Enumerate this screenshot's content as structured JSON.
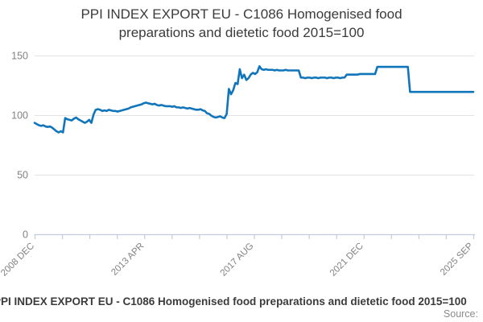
{
  "title_lines": [
    "PPI INDEX EXPORT EU - C1086 Homogenised food",
    "preparations and dietetic food 2015=100"
  ],
  "footer": {
    "title": "PPI INDEX EXPORT EU - C1086 Homogenised food preparations and dietetic food 2015=100",
    "source_label": "Source:"
  },
  "colors": {
    "line": "#1175bb",
    "axis": "#c2cbe0",
    "grid": "#e2e2e2",
    "tick_text": "#828282"
  },
  "chart_data": {
    "type": "line",
    "title": "PPI INDEX EXPORT EU - C1086 Homogenised food preparations and dietetic food 2015=100",
    "frequency": "monthly",
    "x_start": "2008-12",
    "x_end": "2025-09",
    "x_tick_labels": [
      "2008 DEC",
      "2013 APR",
      "2017 AUG",
      "2021 DEC",
      "2025 SEP"
    ],
    "x_tick_count": 17,
    "labeled_tick_indices": [
      0,
      4,
      8,
      12,
      16
    ],
    "y_ticks": [
      0,
      50,
      100,
      150
    ],
    "ylim": [
      0,
      150
    ],
    "grid": true,
    "legend": "none",
    "values": [
      93.5,
      92.5,
      91.5,
      91,
      91.5,
      90.5,
      90,
      90.5,
      89.5,
      88,
      86.5,
      85.5,
      86.5,
      85.5,
      97.5,
      96.5,
      96,
      95.5,
      97,
      98,
      96.5,
      95.5,
      94.5,
      93.5,
      94.5,
      96,
      93.5,
      100.5,
      104.5,
      105,
      104.5,
      103.5,
      104,
      103.5,
      104.5,
      104,
      103.5,
      103.5,
      103,
      103.5,
      104,
      104.5,
      105,
      105.5,
      106.5,
      107,
      107.5,
      108,
      108.5,
      109,
      110,
      110.5,
      110,
      109.5,
      109,
      109.5,
      108.5,
      108,
      108.5,
      108,
      107.5,
      107.5,
      107.5,
      107,
      107.5,
      106.5,
      106.5,
      106,
      106.5,
      106,
      105.5,
      106,
      105.5,
      105,
      104.5,
      104.5,
      105,
      104,
      103.5,
      101.5,
      101,
      99.5,
      98.5,
      98,
      98.5,
      99,
      98,
      97.5,
      101,
      122,
      117.5,
      121,
      127,
      126,
      138.5,
      131,
      134,
      129.5,
      131,
      134,
      135.5,
      134.5,
      136,
      141,
      138.5,
      138,
      138.5,
      138,
      138,
      138,
      137.5,
      138,
      137.5,
      137.5,
      137.5,
      138,
      137.5,
      137.5,
      137.5,
      137.5,
      137.5,
      137.5,
      131.5,
      131.5,
      131,
      131.5,
      131.5,
      131,
      131.5,
      131.5,
      131,
      131.5,
      131.5,
      131.5,
      131,
      131.5,
      131.5,
      131,
      131.5,
      131.5,
      131,
      131.5,
      131.5,
      134,
      134,
      134,
      134,
      134,
      134,
      134.5,
      134.5,
      134.5,
      134.5,
      134.5,
      134.5,
      134.5,
      134.5,
      140.5,
      140.5,
      140.5,
      140.5,
      140.5,
      140.5,
      140.5,
      140.5,
      140.5,
      140.5,
      140.5,
      140.5,
      140.5,
      140.5,
      140.5,
      119.5,
      119.5,
      119.5,
      119.5,
      119.5,
      119.5,
      119.5,
      119.5,
      119.5,
      119.5,
      119.5,
      119.5,
      119.5,
      119.5,
      119.5,
      119.5,
      119.5,
      119.5,
      119.5,
      119.5,
      119.5,
      119.5,
      119.5,
      119.5,
      119.5,
      119.5,
      119.5,
      119.5,
      119.5,
      119.5
    ]
  }
}
